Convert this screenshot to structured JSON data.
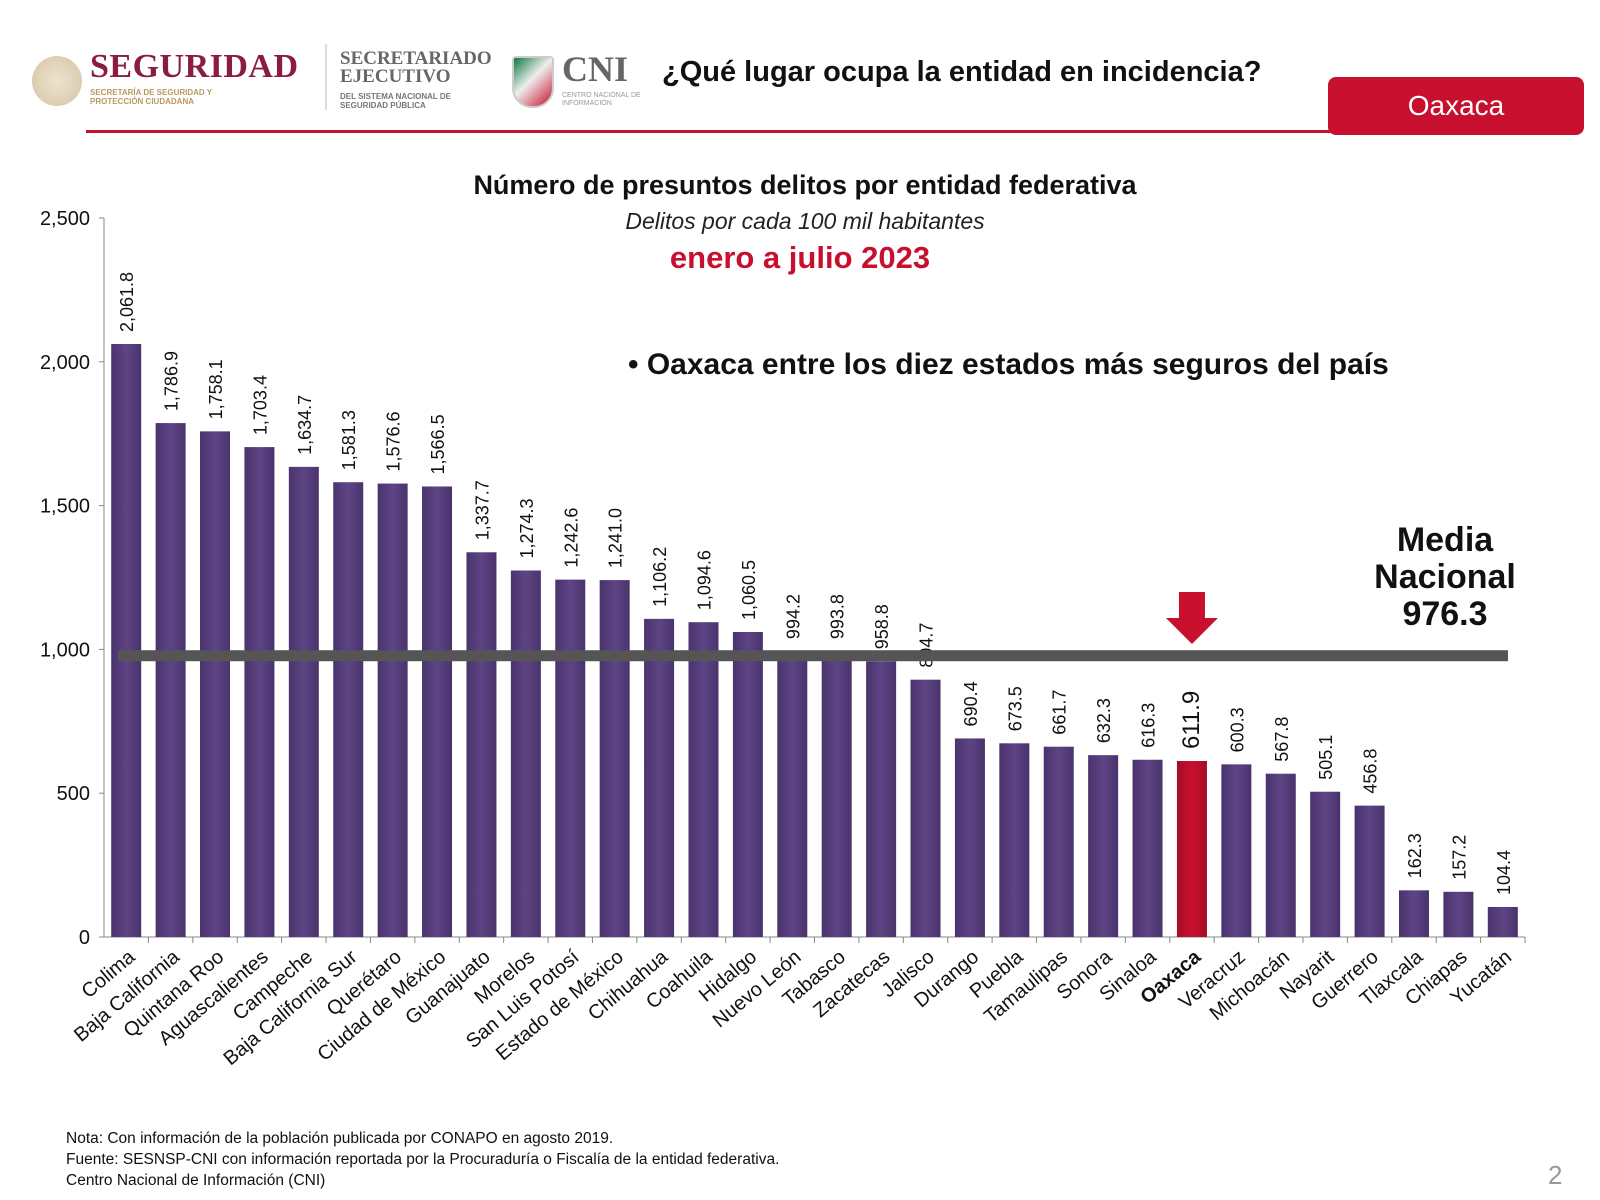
{
  "header": {
    "logo_seguridad": "SEGURIDAD",
    "logo_seguridad_sub": "SECRETARÍA DE SEGURIDAD Y PROTECCIÓN CIUDADANA",
    "logo_secretariado": "SECRETARIADO EJECUTIVO",
    "logo_secretariado_sub": "DEL SISTEMA NACIONAL DE SEGURIDAD PÚBLICA",
    "logo_cni": "CNI",
    "logo_cni_sub": "CENTRO NACIONAL DE INFORMACIÓN",
    "question": "¿Qué lugar ocupa la entidad en incidencia?",
    "state": "Oaxaca"
  },
  "colors": {
    "bar": "#5e4485",
    "highlight": "#c8102e",
    "mean_line": "#555555",
    "accent": "#c8102e"
  },
  "chart_data": {
    "type": "bar",
    "title": "Número de presuntos delitos por entidad federativa",
    "subtitle": "Delitos por cada 100 mil habitantes",
    "period": "enero a julio 2023",
    "annotation": "Oaxaca entre los diez estados más seguros del país",
    "ylim": [
      0,
      2500
    ],
    "yticks": [
      "0",
      "500",
      "1,000",
      "1,500",
      "2,000",
      "2,500"
    ],
    "ytick_values": [
      0,
      500,
      1000,
      1500,
      2000,
      2500
    ],
    "grid": false,
    "highlight": "Oaxaca",
    "mean": {
      "label_line1": "Media",
      "label_line2": "Nacional",
      "value": 976.3,
      "value_label": "976.3"
    },
    "categories": [
      "Colima",
      "Baja California",
      "Quintana Roo",
      "Aguascalientes",
      "Campeche",
      "Baja California Sur",
      "Querétaro",
      "Ciudad de México",
      "Guanajuato",
      "Morelos",
      "San Luis Potosí",
      "Estado de México",
      "Chihuahua",
      "Coahuila",
      "Hidalgo",
      "Nuevo León",
      "Tabasco",
      "Zacatecas",
      "Jalisco",
      "Durango",
      "Puebla",
      "Tamaulipas",
      "Sonora",
      "Sinaloa",
      "Oaxaca",
      "Veracruz",
      "Michoacán",
      "Nayarit",
      "Guerrero",
      "Tlaxcala",
      "Chiapas",
      "Yucatán"
    ],
    "values": [
      2061.8,
      1786.9,
      1758.1,
      1703.4,
      1634.7,
      1581.3,
      1576.6,
      1566.5,
      1337.7,
      1274.3,
      1242.6,
      1241.0,
      1106.2,
      1094.6,
      1060.5,
      994.2,
      993.8,
      958.8,
      894.7,
      690.4,
      673.5,
      661.7,
      632.3,
      616.3,
      611.9,
      600.3,
      567.8,
      505.1,
      456.8,
      162.3,
      157.2,
      104.4
    ],
    "value_labels": [
      "2,061.8",
      "1,786.9",
      "1,758.1",
      "1,703.4",
      "1,634.7",
      "1,581.3",
      "1,576.6",
      "1,566.5",
      "1,337.7",
      "1,274.3",
      "1,242.6",
      "1,241.0",
      "1,106.2",
      "1,094.6",
      "1,060.5",
      "994.2",
      "993.8",
      "958.8",
      "894.7",
      "690.4",
      "673.5",
      "661.7",
      "632.3",
      "616.3",
      "611.9",
      "600.3",
      "567.8",
      "505.1",
      "456.8",
      "162.3",
      "157.2",
      "104.4"
    ]
  },
  "notes": [
    "Nota: Con información de la población publicada por CONAPO en agosto 2019.",
    "Fuente: SESNSP-CNI con información reportada por la Procuraduría o Fiscalía de la entidad federativa.",
    "Centro Nacional de Información (CNI)"
  ],
  "page_number": "2"
}
